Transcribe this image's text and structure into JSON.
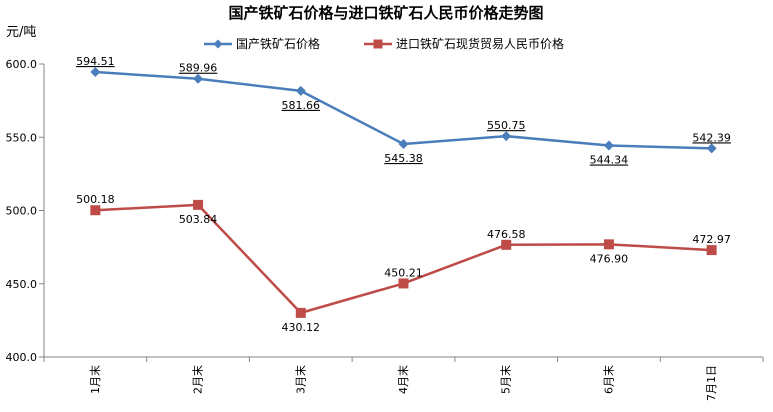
{
  "chart_data": {
    "type": "line",
    "title": "国产铁矿石价格与进口铁矿石人民币价格走势图",
    "ylabel": "元/吨",
    "ylim": [
      400,
      600
    ],
    "yticks": [
      "400.0",
      "450.0",
      "500.0",
      "550.0",
      "600.0"
    ],
    "categories": [
      "1月末",
      "2月末",
      "3月末",
      "4月末",
      "5月末",
      "6月末",
      "7月1日"
    ],
    "grid": false,
    "legend": "top-center",
    "series": [
      {
        "name": "国产铁矿石价格",
        "values": [
          594.51,
          589.96,
          581.66,
          545.38,
          550.75,
          544.34,
          542.39
        ],
        "labels": [
          "594.51",
          "589.96",
          "581.66",
          "545.38",
          "550.75",
          "544.34",
          "542.39"
        ],
        "color": "#4a7ebb",
        "marker": "diamond"
      },
      {
        "name": "进口铁矿石现货贸易人民币价格",
        "values": [
          500.18,
          503.84,
          430.12,
          450.21,
          476.58,
          476.9,
          472.97
        ],
        "labels": [
          "500.18",
          "503.84",
          "430.12",
          "450.21",
          "476.58",
          "476.90",
          "472.97"
        ],
        "color": "#be4b48",
        "marker": "square"
      }
    ]
  }
}
